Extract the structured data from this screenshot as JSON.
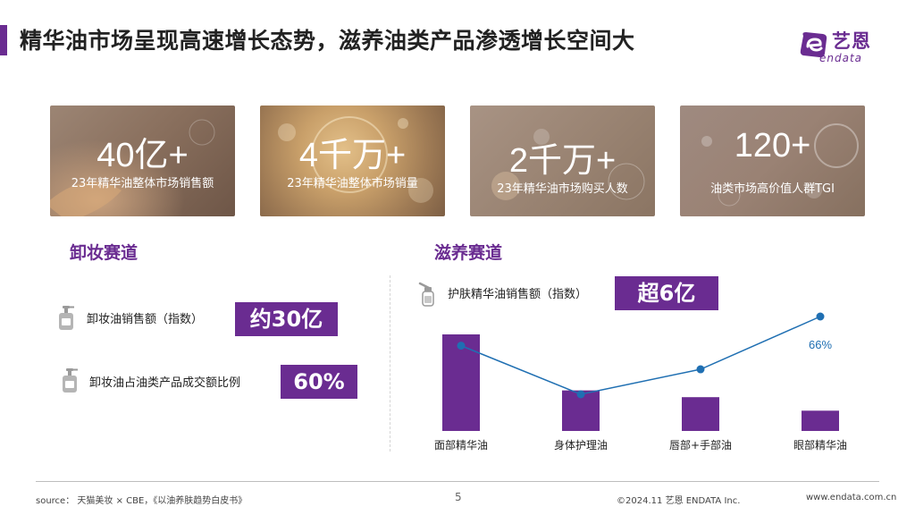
{
  "header": {
    "title": "精华油市场呈现高速增长态势，滋养油类产品渗透增长空间大",
    "logo_cn": "艺恩",
    "logo_en": "endata"
  },
  "stats": [
    {
      "value": "40亿+",
      "label": "23年精华油整体市场销售额"
    },
    {
      "value": "4千万+",
      "label": "23年精华油整体市场销量"
    },
    {
      "value": "2千万+",
      "label": "23年精华油市场购买人数"
    },
    {
      "value": "120+",
      "label": "油类市场高价值人群TGI"
    }
  ],
  "makeup_removal": {
    "title": "卸妆赛道",
    "metrics": [
      {
        "label": "卸妆油销售额（指数）",
        "value": "约30亿",
        "icon": "pump-bottle-icon"
      },
      {
        "label": "卸妆油占油类产品成交额比例",
        "value": "60%",
        "icon": "pump-bottle-icon"
      }
    ]
  },
  "nourishing": {
    "title": "滋养赛道",
    "metric": {
      "label": "护肤精华油销售额（指数）",
      "value": "超6亿",
      "icon": "dropper-bottle-icon"
    }
  },
  "chart_data": {
    "type": "bar",
    "categories": [
      "面部精华油",
      "身体护理油",
      "唇部+手部油",
      "眼部精华油"
    ],
    "series": [
      {
        "type": "bar",
        "values": [
          100,
          42,
          35,
          21
        ]
      },
      {
        "type": "line",
        "values": [
          45,
          10,
          28,
          66
        ]
      }
    ],
    "annotations": [
      {
        "category": "眼部精华油",
        "text": "66%"
      }
    ],
    "colors": {
      "bar": "#6a2c91",
      "line": "#1f6fb2"
    }
  },
  "footer": {
    "source": "source： 天猫美妆 × CBE，《以油养肤趋势白皮书》",
    "page_number": "5",
    "copyright": "©2024.11  艺恩 ENDATA Inc.",
    "website": "www.endata.com.cn"
  },
  "colors": {
    "accent": "#6a2c91",
    "line": "#1f6fb2"
  }
}
